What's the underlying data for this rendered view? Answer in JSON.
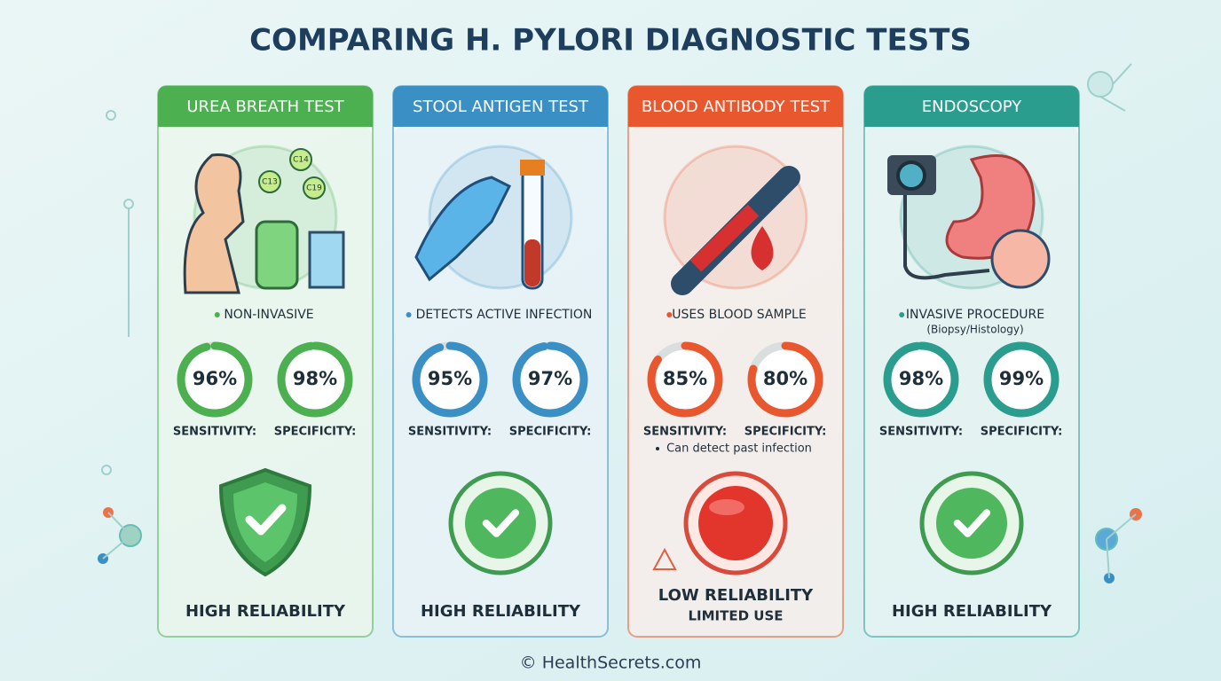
{
  "title": "COMPARING H. PYLORI DIAGNOSTIC TESTS",
  "cards": [
    {
      "title": "UREA BREATH TEST",
      "color": "#4caf50",
      "note": "NON-INVASIVE",
      "icon_labels": [
        "C14",
        "C13",
        "C19"
      ],
      "metrics": [
        {
          "name": "SENSITIVITY:",
          "value": 96,
          "label": "96%"
        },
        {
          "name": "SPECIFICITY:",
          "value": 98,
          "label": "98%"
        }
      ],
      "verdict": "HIGH RELIABILITY"
    },
    {
      "title": "STOOL ANTIGEN TEST",
      "color": "#3a8fc4",
      "note": "DETECTS ACTIVE INFECTION",
      "metrics": [
        {
          "name": "SENSITIVITY:",
          "value": 95,
          "label": "95%"
        },
        {
          "name": "SPECIFICITY:",
          "value": 97,
          "label": "97%"
        }
      ],
      "verdict": "HIGH RELIABILITY"
    },
    {
      "title": "BLOOD ANTIBODY TEST",
      "color": "#e8572e",
      "note": "USES BLOOD SAMPLE",
      "metrics": [
        {
          "name": "SENSITIVITY:",
          "value": 85,
          "label": "85%"
        },
        {
          "name": "SPECIFICITY:",
          "value": 80,
          "label": "80%"
        }
      ],
      "extra_note": "Can detect past infection",
      "verdict": "LOW RELIABILITY",
      "subverdict": "LIMITED USE"
    },
    {
      "title": "ENDOSCOPY",
      "color": "#2a9d8f",
      "note": "INVASIVE PROCEDURE",
      "subnote": "(Biopsy/Histology)",
      "metrics": [
        {
          "name": "SENSITIVITY:",
          "value": 98,
          "label": "98%"
        },
        {
          "name": "SPECIFICITY:",
          "value": 99,
          "label": "99%"
        }
      ],
      "verdict": "HIGH RELIABILITY"
    }
  ],
  "footer": "© HealthSecrets.com"
}
